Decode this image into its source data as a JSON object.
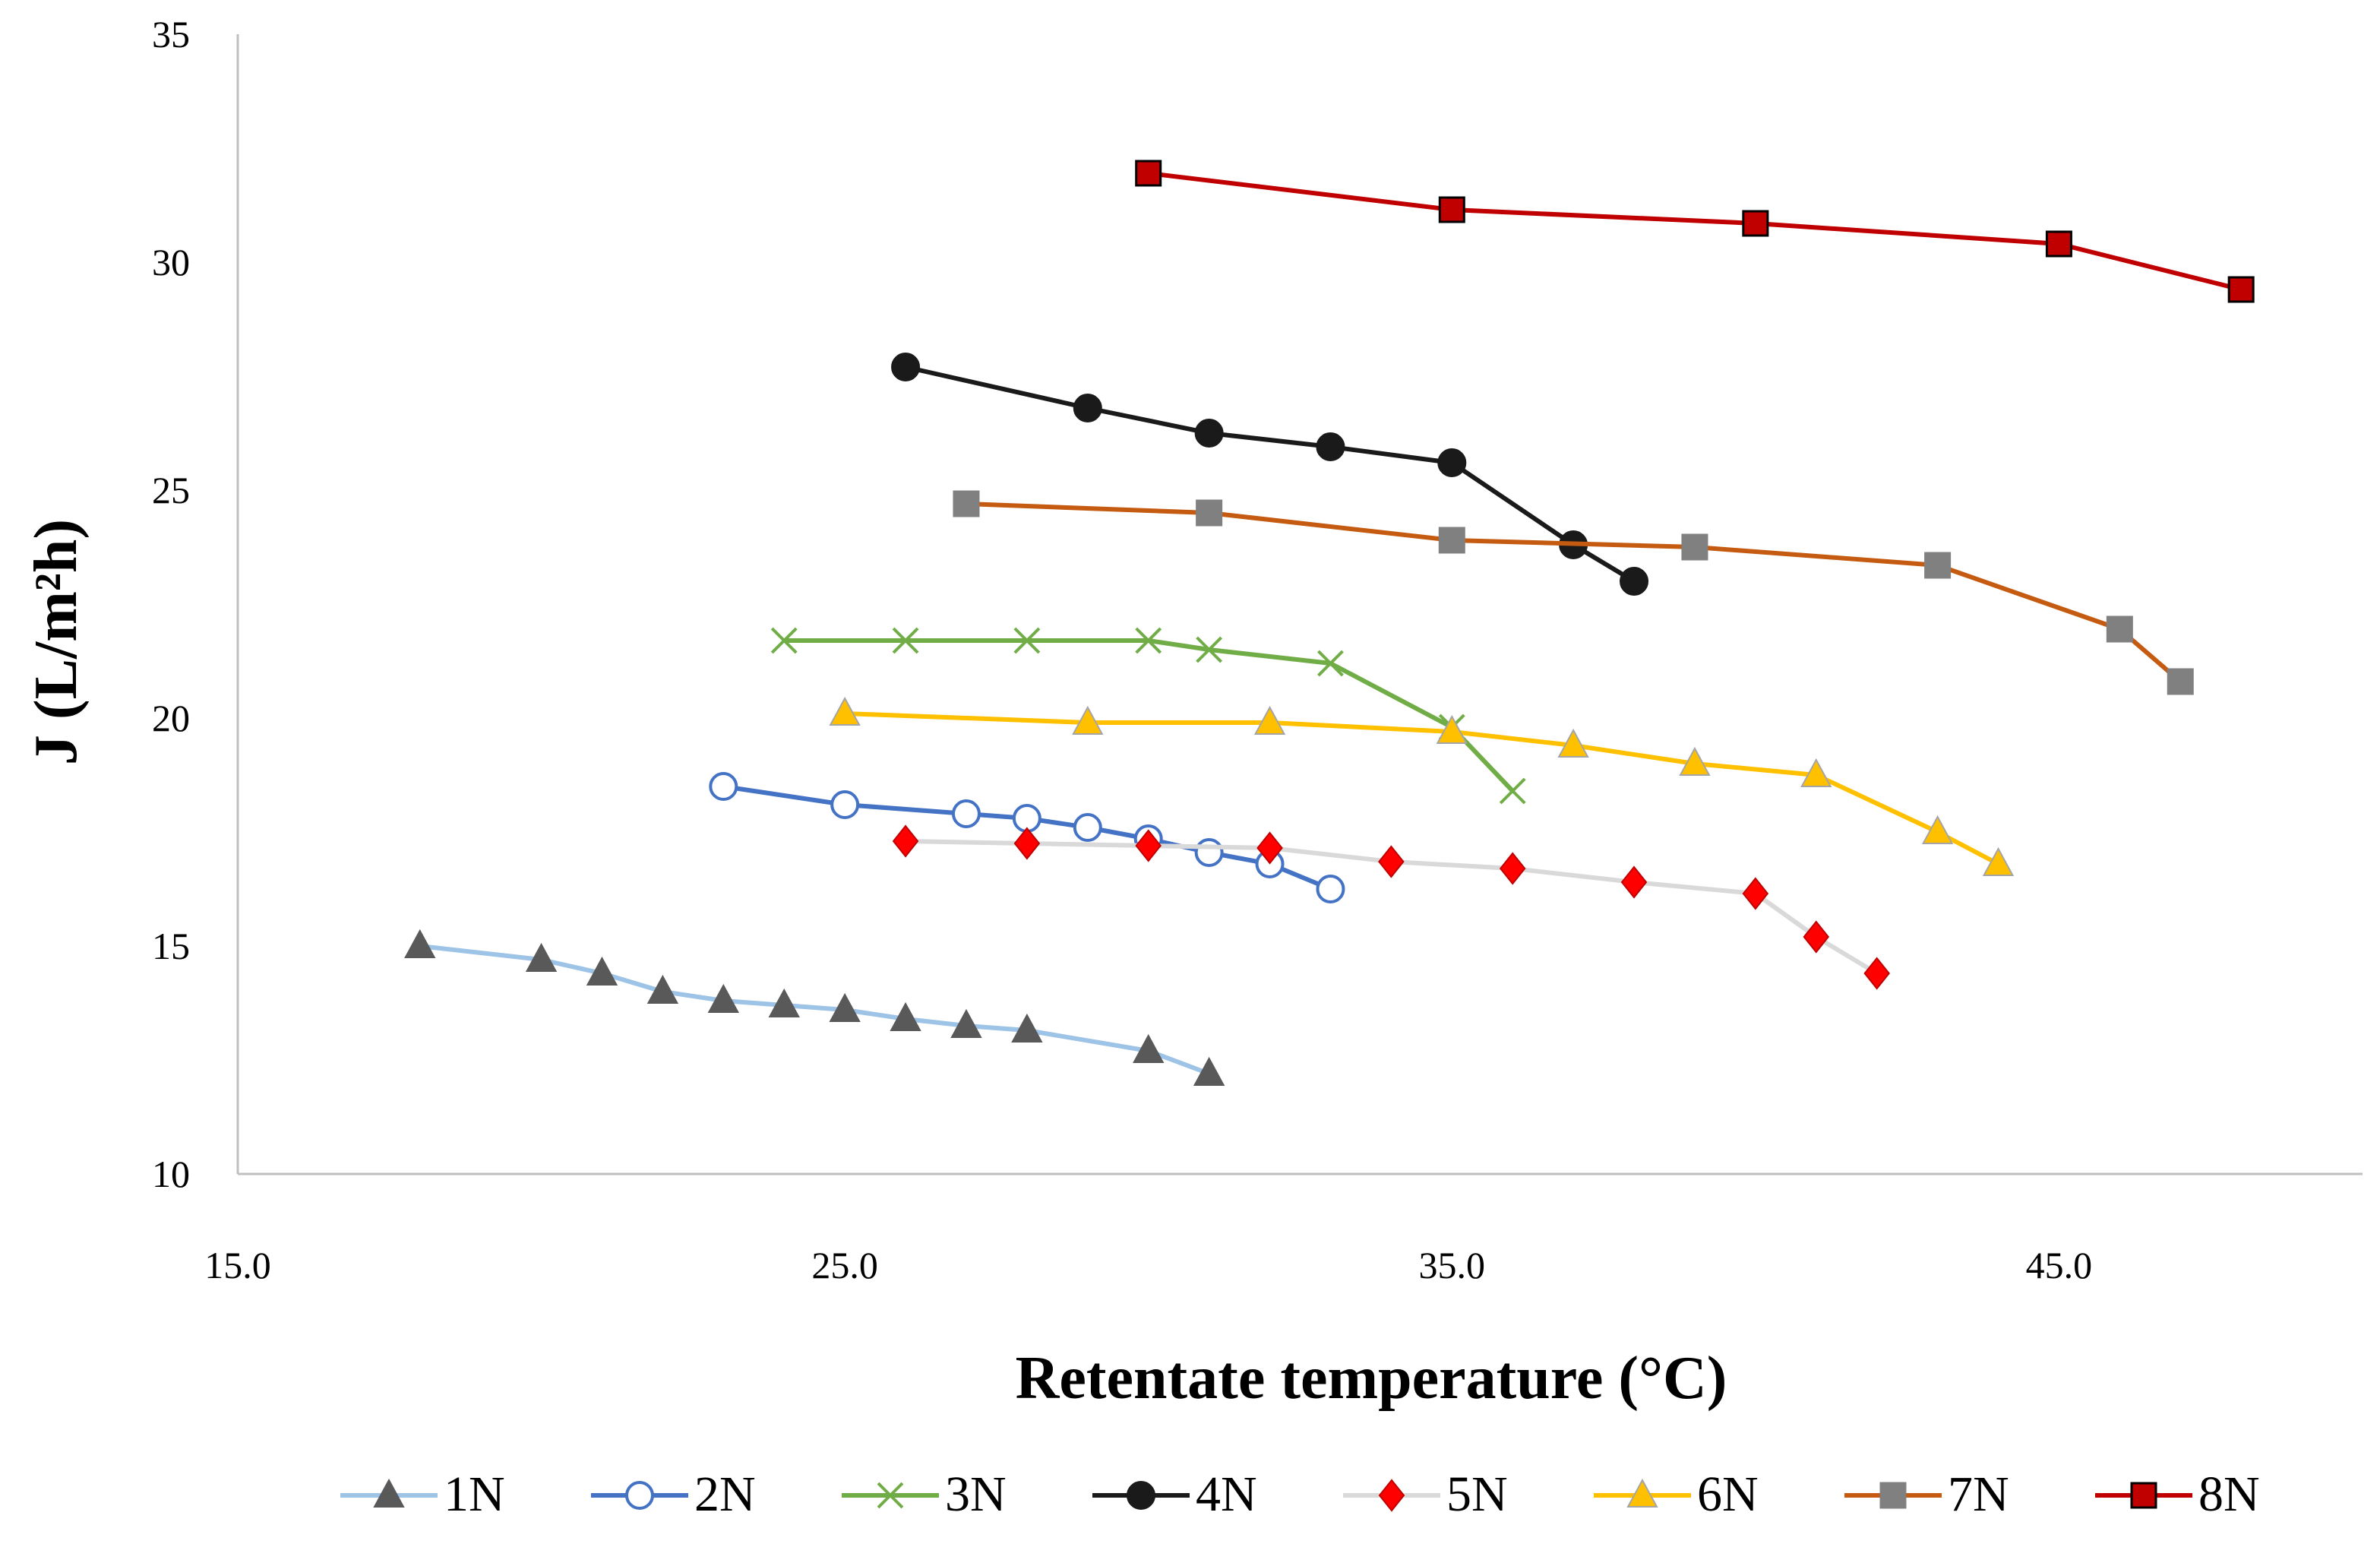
{
  "chart_data": {
    "type": "line",
    "xlabel": "Retentate temperature (°C)",
    "ylabel": "J (L/m²h)",
    "xlim": [
      15,
      50
    ],
    "ylim": [
      10,
      35
    ],
    "xticks": [
      15,
      25,
      35,
      45
    ],
    "xtick_labels": [
      "15.0",
      "25.0",
      "35.0",
      "45.0"
    ],
    "yticks": [
      10,
      15,
      20,
      25,
      30,
      35
    ],
    "ytick_labels": [
      "10",
      "15",
      "20",
      "25",
      "30",
      "35"
    ],
    "grid": false,
    "legend": "bottom",
    "series": [
      {
        "name": "1N",
        "line_color": "#9DC3E6",
        "marker": "triangle",
        "marker_fill": "#595959",
        "marker_stroke": "#595959",
        "x": [
          18,
          20,
          21,
          22,
          23,
          24,
          25,
          26,
          27,
          28,
          30,
          31
        ],
        "y": [
          15.0,
          14.7,
          14.4,
          14.0,
          13.8,
          13.7,
          13.6,
          13.4,
          13.25,
          13.15,
          12.7,
          12.2
        ]
      },
      {
        "name": "2N",
        "line_color": "#4472C4",
        "marker": "circle",
        "marker_fill": "#FFFFFF",
        "marker_stroke": "#4472C4",
        "x": [
          23,
          25,
          27,
          28,
          29,
          30,
          31,
          32,
          33
        ],
        "y": [
          18.5,
          18.1,
          17.9,
          17.8,
          17.6,
          17.35,
          17.05,
          16.8,
          16.25
        ]
      },
      {
        "name": "3N",
        "line_color": "#70AD47",
        "marker": "x",
        "marker_fill": "none",
        "marker_stroke": "#70AD47",
        "x": [
          24,
          26,
          28,
          30,
          31,
          33,
          35,
          36
        ],
        "y": [
          21.7,
          21.7,
          21.7,
          21.7,
          21.5,
          21.2,
          19.8,
          18.4
        ]
      },
      {
        "name": "4N",
        "line_color": "#1A1A1A",
        "marker": "circle",
        "marker_fill": "#1A1A1A",
        "marker_stroke": "#1A1A1A",
        "x": [
          26,
          29,
          31,
          33,
          35,
          37,
          38
        ],
        "y": [
          27.7,
          26.8,
          26.25,
          25.95,
          25.6,
          23.8,
          23.0
        ]
      },
      {
        "name": "5N",
        "line_color": "#D9D9D9",
        "marker": "diamond",
        "marker_fill": "#FF0000",
        "marker_stroke": "#C00000",
        "x": [
          26,
          28,
          30,
          32,
          34,
          36,
          38,
          40,
          41,
          42
        ],
        "y": [
          17.3,
          17.25,
          17.2,
          17.15,
          16.85,
          16.7,
          16.4,
          16.15,
          15.2,
          14.4
        ]
      },
      {
        "name": "6N",
        "line_color": "#FFC000",
        "marker": "triangle",
        "marker_fill": "#FFC000",
        "marker_stroke": "#A5A5A5",
        "x": [
          25,
          29,
          32,
          35,
          37,
          39,
          41,
          43,
          44
        ],
        "y": [
          20.1,
          19.9,
          19.9,
          19.7,
          19.4,
          19.0,
          18.75,
          17.5,
          16.8
        ]
      },
      {
        "name": "7N",
        "line_color": "#C55A11",
        "marker": "square",
        "marker_fill": "#808080",
        "marker_stroke": "#808080",
        "x": [
          27,
          31,
          35,
          39,
          43,
          46,
          47
        ],
        "y": [
          24.7,
          24.5,
          23.9,
          23.75,
          23.35,
          21.95,
          20.8
        ]
      },
      {
        "name": "8N",
        "line_color": "#C00000",
        "marker": "square",
        "marker_fill": "#C00000",
        "marker_stroke": "#000000",
        "x": [
          30,
          35,
          40,
          45,
          48
        ],
        "y": [
          31.95,
          31.15,
          30.85,
          30.4,
          29.4
        ]
      }
    ]
  }
}
